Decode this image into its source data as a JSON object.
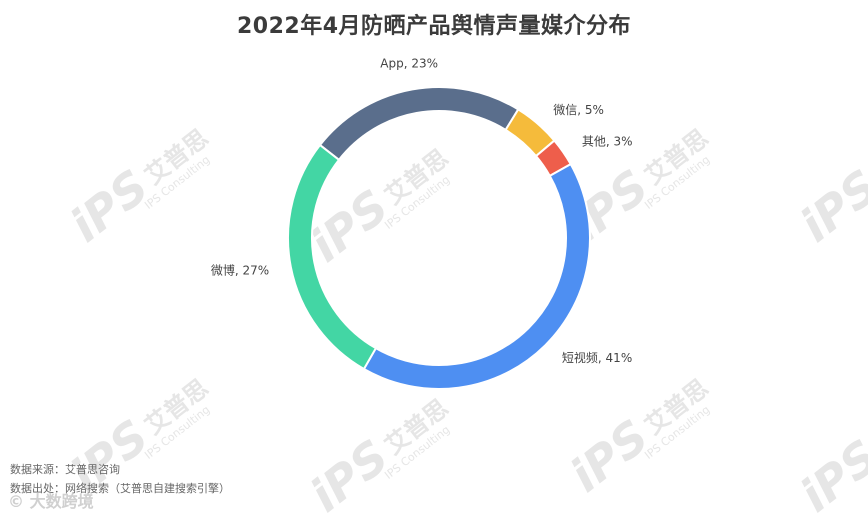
{
  "watermark": {
    "logo_text": "iPS",
    "cn_text": "艾普思",
    "en_text": "IPS Consulting"
  },
  "footer": {
    "source": "数据来源：艾普思咨询",
    "origin": "数据出处：网络搜索（艾普思自建搜索引擎）"
  },
  "brand": {
    "text": "© 大数跨境"
  },
  "chart_data": {
    "type": "pie",
    "style": "donut",
    "title": "2022年4月防晒产品舆情声量媒介分布",
    "slices": [
      {
        "label": "App",
        "value": 23,
        "unit": "%",
        "color": "#5a6e8c"
      },
      {
        "label": "微信",
        "value": 5,
        "unit": "%",
        "color": "#f5bb3b"
      },
      {
        "label": "其他",
        "value": 3,
        "unit": "%",
        "color": "#ee5e4b"
      },
      {
        "label": "短视频",
        "value": 41,
        "unit": "%",
        "color": "#4e8ff2"
      },
      {
        "label": "微博",
        "value": 27,
        "unit": "%",
        "color": "#43d6a4"
      }
    ]
  }
}
